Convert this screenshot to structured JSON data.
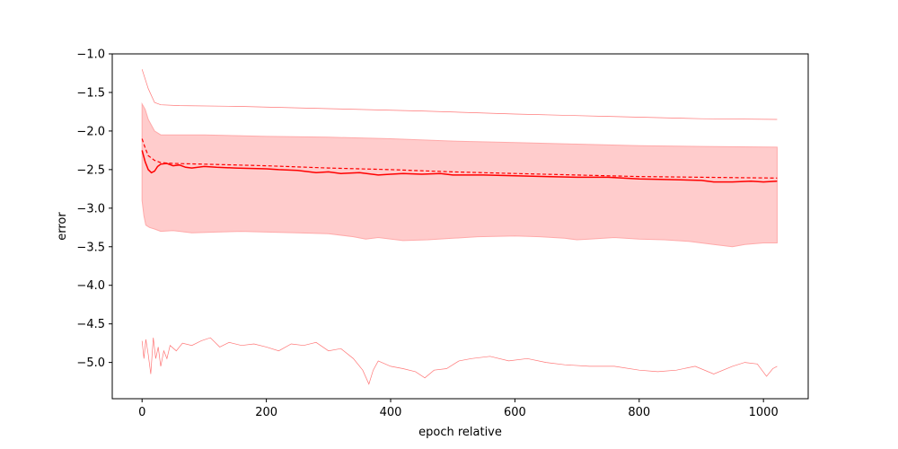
{
  "chart_data": {
    "type": "line",
    "title": "",
    "xlabel": "epoch relative",
    "ylabel": "error",
    "xlim": [
      -48,
      1072
    ],
    "ylim": [
      -5.47,
      -1.0
    ],
    "x_ticks": [
      0,
      200,
      400,
      600,
      800,
      1000
    ],
    "y_ticks": [
      -1.0,
      -1.5,
      -2.0,
      -2.5,
      -3.0,
      -3.5,
      -4.0,
      -4.5,
      -5.0
    ],
    "x_tick_labels": [
      "0",
      "200",
      "400",
      "600",
      "800",
      "1000"
    ],
    "y_tick_labels": [
      "−1.0",
      "−1.5",
      "−2.0",
      "−2.5",
      "−3.0",
      "−3.5",
      "−4.0",
      "−4.5",
      "−5.0"
    ],
    "grid": false,
    "legend": "none",
    "colors": {
      "line": "#ff0000",
      "band": "#ffcccc",
      "band_edge": "#ffaaaa",
      "thin": "#ff7777"
    },
    "series": [
      {
        "role": "max",
        "style": "thin",
        "points": [
          [
            0,
            -1.2
          ],
          [
            10,
            -1.45
          ],
          [
            20,
            -1.63
          ],
          [
            30,
            -1.66
          ],
          [
            60,
            -1.67
          ],
          [
            150,
            -1.68
          ],
          [
            300,
            -1.71
          ],
          [
            450,
            -1.74
          ],
          [
            600,
            -1.78
          ],
          [
            750,
            -1.81
          ],
          [
            900,
            -1.84
          ],
          [
            1022,
            -1.85
          ]
        ]
      },
      {
        "role": "band-upper",
        "style": "band",
        "points": [
          [
            0,
            -1.65
          ],
          [
            5,
            -1.72
          ],
          [
            10,
            -1.85
          ],
          [
            20,
            -2.0
          ],
          [
            30,
            -2.05
          ],
          [
            50,
            -2.05
          ],
          [
            100,
            -2.05
          ],
          [
            200,
            -2.07
          ],
          [
            300,
            -2.08
          ],
          [
            400,
            -2.1
          ],
          [
            500,
            -2.13
          ],
          [
            600,
            -2.15
          ],
          [
            700,
            -2.17
          ],
          [
            800,
            -2.19
          ],
          [
            900,
            -2.2
          ],
          [
            1022,
            -2.21
          ]
        ]
      },
      {
        "role": "band-lower",
        "style": "band",
        "points": [
          [
            0,
            -2.9
          ],
          [
            3,
            -3.1
          ],
          [
            6,
            -3.22
          ],
          [
            12,
            -3.25
          ],
          [
            20,
            -3.27
          ],
          [
            30,
            -3.3
          ],
          [
            50,
            -3.29
          ],
          [
            80,
            -3.32
          ],
          [
            120,
            -3.31
          ],
          [
            160,
            -3.3
          ],
          [
            200,
            -3.31
          ],
          [
            250,
            -3.32
          ],
          [
            300,
            -3.33
          ],
          [
            340,
            -3.37
          ],
          [
            360,
            -3.4
          ],
          [
            380,
            -3.38
          ],
          [
            420,
            -3.42
          ],
          [
            460,
            -3.41
          ],
          [
            500,
            -3.39
          ],
          [
            540,
            -3.37
          ],
          [
            600,
            -3.36
          ],
          [
            640,
            -3.37
          ],
          [
            680,
            -3.39
          ],
          [
            700,
            -3.41
          ],
          [
            720,
            -3.4
          ],
          [
            760,
            -3.38
          ],
          [
            800,
            -3.4
          ],
          [
            840,
            -3.41
          ],
          [
            880,
            -3.43
          ],
          [
            920,
            -3.47
          ],
          [
            950,
            -3.5
          ],
          [
            970,
            -3.47
          ],
          [
            1000,
            -3.45
          ],
          [
            1022,
            -3.45
          ]
        ]
      },
      {
        "role": "mean",
        "style": "dashed",
        "points": [
          [
            0,
            -2.1
          ],
          [
            5,
            -2.22
          ],
          [
            10,
            -2.32
          ],
          [
            20,
            -2.38
          ],
          [
            30,
            -2.41
          ],
          [
            50,
            -2.42
          ],
          [
            100,
            -2.43
          ],
          [
            200,
            -2.45
          ],
          [
            300,
            -2.48
          ],
          [
            400,
            -2.5
          ],
          [
            500,
            -2.53
          ],
          [
            600,
            -2.55
          ],
          [
            700,
            -2.57
          ],
          [
            800,
            -2.59
          ],
          [
            900,
            -2.6
          ],
          [
            1022,
            -2.61
          ]
        ]
      },
      {
        "role": "median",
        "style": "solid",
        "points": [
          [
            0,
            -2.25
          ],
          [
            5,
            -2.4
          ],
          [
            10,
            -2.5
          ],
          [
            15,
            -2.54
          ],
          [
            20,
            -2.52
          ],
          [
            25,
            -2.46
          ],
          [
            30,
            -2.43
          ],
          [
            40,
            -2.42
          ],
          [
            50,
            -2.45
          ],
          [
            60,
            -2.44
          ],
          [
            70,
            -2.47
          ],
          [
            80,
            -2.48
          ],
          [
            100,
            -2.46
          ],
          [
            120,
            -2.47
          ],
          [
            150,
            -2.48
          ],
          [
            200,
            -2.49
          ],
          [
            220,
            -2.5
          ],
          [
            250,
            -2.51
          ],
          [
            280,
            -2.54
          ],
          [
            300,
            -2.53
          ],
          [
            320,
            -2.55
          ],
          [
            350,
            -2.54
          ],
          [
            380,
            -2.57
          ],
          [
            400,
            -2.56
          ],
          [
            420,
            -2.55
          ],
          [
            450,
            -2.56
          ],
          [
            480,
            -2.55
          ],
          [
            500,
            -2.57
          ],
          [
            550,
            -2.57
          ],
          [
            600,
            -2.58
          ],
          [
            650,
            -2.59
          ],
          [
            700,
            -2.6
          ],
          [
            750,
            -2.6
          ],
          [
            800,
            -2.62
          ],
          [
            850,
            -2.63
          ],
          [
            900,
            -2.64
          ],
          [
            920,
            -2.66
          ],
          [
            950,
            -2.66
          ],
          [
            980,
            -2.65
          ],
          [
            1000,
            -2.66
          ],
          [
            1022,
            -2.65
          ]
        ]
      },
      {
        "role": "min",
        "style": "thin",
        "points": [
          [
            0,
            -4.72
          ],
          [
            3,
            -4.95
          ],
          [
            6,
            -4.7
          ],
          [
            10,
            -4.9
          ],
          [
            14,
            -5.15
          ],
          [
            18,
            -4.68
          ],
          [
            22,
            -4.95
          ],
          [
            26,
            -4.8
          ],
          [
            30,
            -5.05
          ],
          [
            35,
            -4.85
          ],
          [
            40,
            -4.95
          ],
          [
            45,
            -4.78
          ],
          [
            55,
            -4.85
          ],
          [
            65,
            -4.75
          ],
          [
            80,
            -4.78
          ],
          [
            95,
            -4.72
          ],
          [
            110,
            -4.68
          ],
          [
            125,
            -4.8
          ],
          [
            140,
            -4.74
          ],
          [
            160,
            -4.78
          ],
          [
            180,
            -4.76
          ],
          [
            200,
            -4.8
          ],
          [
            220,
            -4.85
          ],
          [
            240,
            -4.76
          ],
          [
            260,
            -4.78
          ],
          [
            280,
            -4.74
          ],
          [
            300,
            -4.85
          ],
          [
            320,
            -4.82
          ],
          [
            340,
            -4.95
          ],
          [
            355,
            -5.1
          ],
          [
            365,
            -5.28
          ],
          [
            372,
            -5.1
          ],
          [
            380,
            -4.98
          ],
          [
            400,
            -5.05
          ],
          [
            420,
            -5.08
          ],
          [
            440,
            -5.12
          ],
          [
            455,
            -5.2
          ],
          [
            470,
            -5.1
          ],
          [
            490,
            -5.08
          ],
          [
            510,
            -4.98
          ],
          [
            530,
            -4.95
          ],
          [
            560,
            -4.92
          ],
          [
            590,
            -4.98
          ],
          [
            620,
            -4.95
          ],
          [
            650,
            -5.0
          ],
          [
            680,
            -5.03
          ],
          [
            720,
            -5.05
          ],
          [
            760,
            -5.05
          ],
          [
            800,
            -5.1
          ],
          [
            830,
            -5.12
          ],
          [
            860,
            -5.1
          ],
          [
            890,
            -5.05
          ],
          [
            920,
            -5.15
          ],
          [
            950,
            -5.05
          ],
          [
            970,
            -5.0
          ],
          [
            990,
            -5.02
          ],
          [
            1005,
            -5.18
          ],
          [
            1015,
            -5.08
          ],
          [
            1022,
            -5.05
          ]
        ]
      }
    ]
  }
}
